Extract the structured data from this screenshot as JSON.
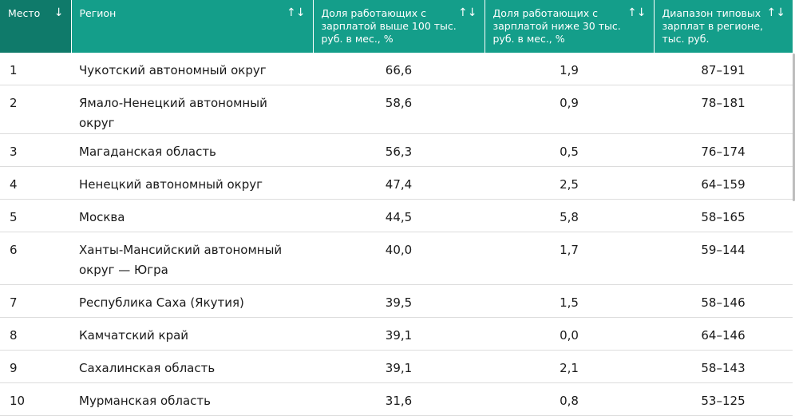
{
  "columns": {
    "place": "Место",
    "region": "Регион",
    "high": "Доля работающих с зарплатой выше 100 тыс. руб. в мес., %",
    "low": "Доля работающих с зарплатой ниже 30 тыс. руб. в мес., %",
    "range": "Диапазон типовых зарплат в регионе, тыс. руб."
  },
  "icons": {
    "sort_active": "↓",
    "sort_both": "↑↓"
  },
  "rows": [
    {
      "place": "1",
      "region": "Чукотский автономный округ",
      "high": "66,6",
      "low": "1,9",
      "range": "87–191"
    },
    {
      "place": "2",
      "region": "Ямало-Ненецкий автономный округ",
      "high": "58,6",
      "low": "0,9",
      "range": "78–181"
    },
    {
      "place": "3",
      "region": "Магаданская область",
      "high": "56,3",
      "low": "0,5",
      "range": "76–174"
    },
    {
      "place": "4",
      "region": "Ненецкий автономный округ",
      "high": "47,4",
      "low": "2,5",
      "range": "64–159"
    },
    {
      "place": "5",
      "region": "Москва",
      "high": "44,5",
      "low": "5,8",
      "range": "58–165"
    },
    {
      "place": "6",
      "region": "Ханты-Мансийский автономный округ — Югра",
      "high": "40,0",
      "low": "1,7",
      "range": "59–144"
    },
    {
      "place": "7",
      "region": "Республика Саха (Якутия)",
      "high": "39,5",
      "low": "1,5",
      "range": "58–146"
    },
    {
      "place": "8",
      "region": "Камчатский край",
      "high": "39,1",
      "low": "0,0",
      "range": "64–146"
    },
    {
      "place": "9",
      "region": "Сахалинская область",
      "high": "39,1",
      "low": "2,1",
      "range": "58–143"
    },
    {
      "place": "10",
      "region": "Мурманская область",
      "high": "31,6",
      "low": "0,8",
      "range": "53–125"
    }
  ]
}
